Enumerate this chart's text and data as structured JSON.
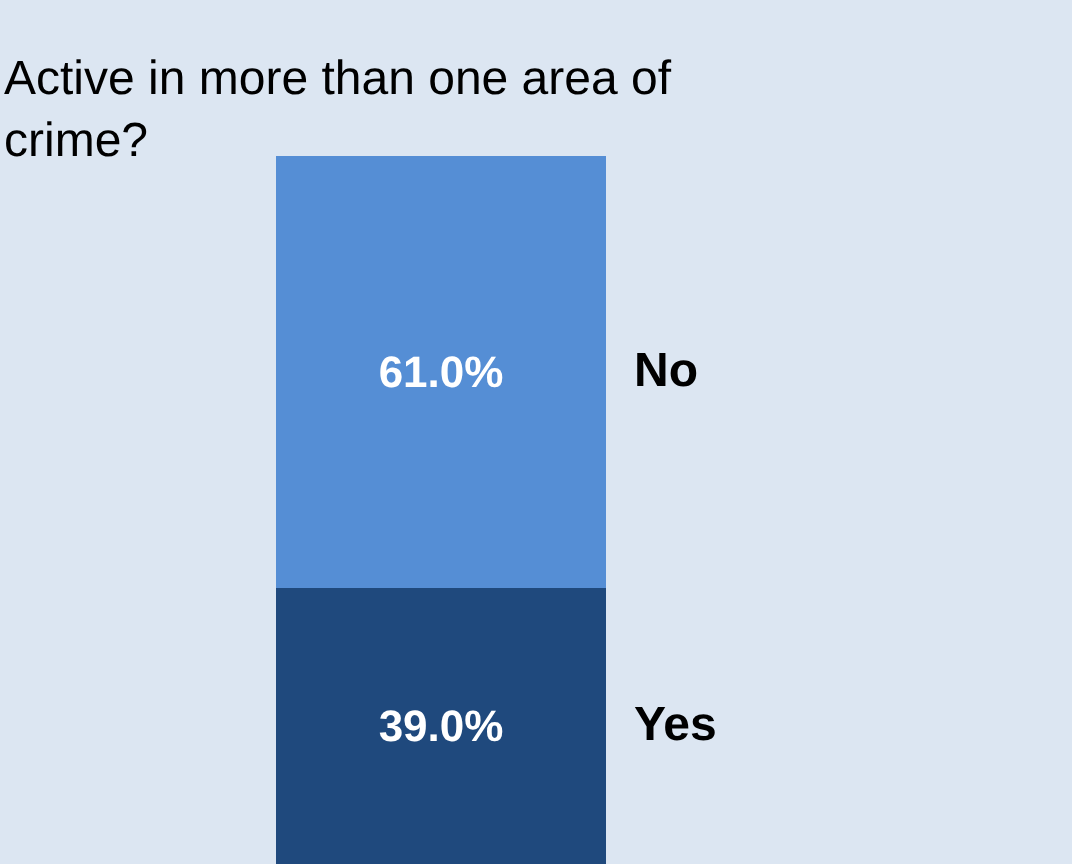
{
  "chart_data": {
    "type": "bar",
    "title": "Active in more than one area of crime?",
    "categories": [
      null
    ],
    "stacked": true,
    "legend": false,
    "series": [
      {
        "name": "Yes",
        "color": "#1f497d",
        "values": [
          39.0
        ],
        "value_labels": [
          "39.0%"
        ]
      },
      {
        "name": "No",
        "color": "#558ed5",
        "values": [
          61.0
        ],
        "value_labels": [
          "61.0%"
        ]
      }
    ]
  }
}
